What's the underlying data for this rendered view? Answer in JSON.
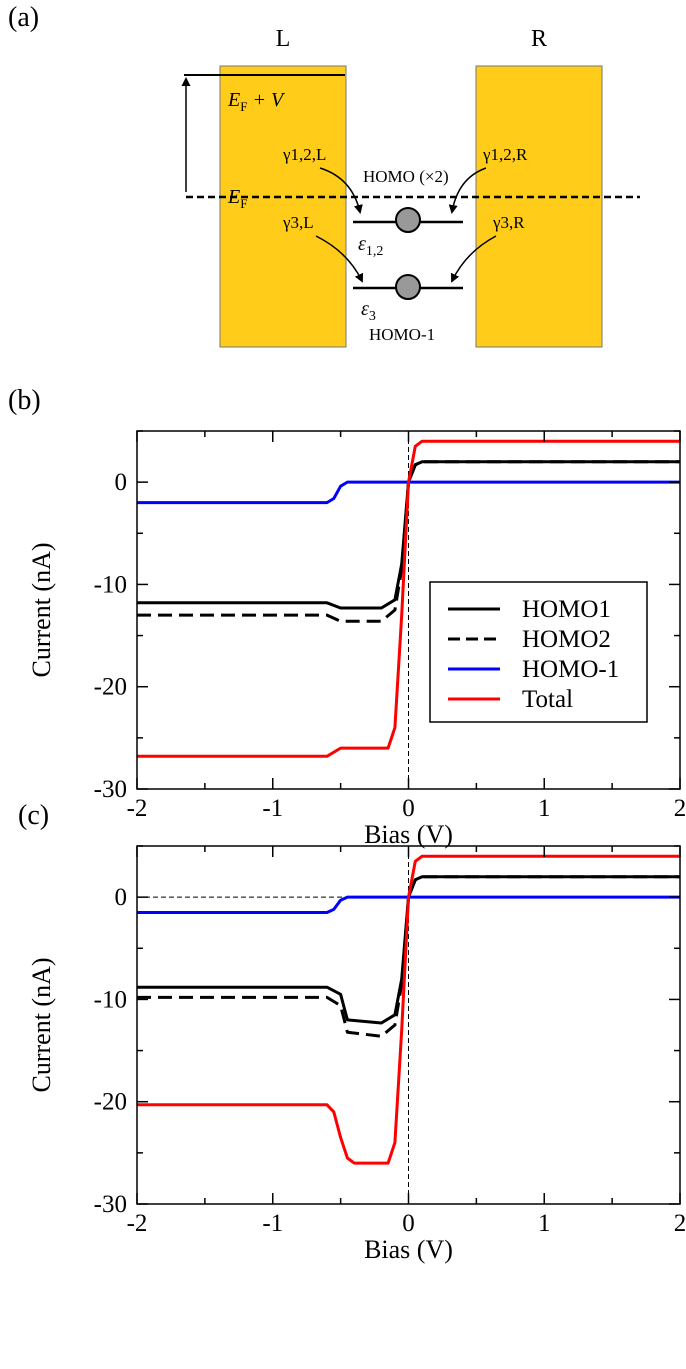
{
  "panel_labels": [
    "(a)",
    "(b)",
    "(c)"
  ],
  "diagram": {
    "left_label": "L",
    "right_label": "R",
    "ef_v": "E",
    "ef_v_sub": "F",
    "ef_v_suffix": " + V",
    "ef": "E",
    "ef_sub": "F",
    "g12L": "γ1,2,L",
    "g12R": "γ1,2,R",
    "g3L": "γ3,L",
    "g3R": "γ3,R",
    "homo": "HOMO (×2)",
    "eps12": "ε",
    "eps12_sub": "1,2",
    "eps3": "ε",
    "eps3_sub": "3",
    "homo_minus1": "HOMO-1",
    "colors": {
      "electrode": "#FFCC1A",
      "level_dot": "#999999"
    }
  },
  "chart_data": [
    {
      "type": "line",
      "xlabel": "Bias (V)",
      "ylabel": "Current (nA)",
      "xlim": [
        -2,
        2
      ],
      "ylim": [
        -30,
        5
      ],
      "xticks": [
        "-2",
        "-1",
        "0",
        "1",
        "2"
      ],
      "yticks": [
        "0",
        "-10",
        "-20",
        "-30"
      ],
      "legend": {
        "position": "right-center",
        "entries": [
          "HOMO1",
          "HOMO2",
          "HOMO-1",
          "Total"
        ]
      },
      "series": [
        {
          "name": "HOMO1",
          "color": "#000000",
          "dash": "solid",
          "x": [
            -2,
            -0.6,
            -0.5,
            -0.2,
            -0.1,
            -0.05,
            0,
            0.05,
            0.1,
            2
          ],
          "y": [
            -11.8,
            -11.8,
            -12.3,
            -12.3,
            -11.5,
            -8,
            0,
            1.7,
            2,
            2
          ]
        },
        {
          "name": "HOMO2",
          "color": "#000000",
          "dash": "dashed",
          "x": [
            -2,
            -0.6,
            -0.5,
            -0.2,
            -0.1,
            -0.05,
            0,
            0.05,
            0.1,
            2
          ],
          "y": [
            -13,
            -13,
            -13.6,
            -13.6,
            -12.5,
            -8.5,
            0,
            1.7,
            2,
            2
          ]
        },
        {
          "name": "HOMO-1",
          "color": "#0000FF",
          "dash": "solid",
          "x": [
            -2,
            -0.6,
            -0.55,
            -0.5,
            -0.45,
            2
          ],
          "y": [
            -2,
            -2,
            -1.6,
            -0.4,
            0,
            0
          ]
        },
        {
          "name": "Total",
          "color": "#FF0000",
          "dash": "solid",
          "x": [
            -2,
            -0.6,
            -0.5,
            -0.15,
            -0.1,
            -0.05,
            0,
            0.05,
            0.1,
            2
          ],
          "y": [
            -26.8,
            -26.8,
            -26,
            -26,
            -24,
            -13,
            0,
            3.5,
            4,
            4
          ]
        }
      ]
    },
    {
      "type": "line",
      "xlabel": "Bias (V)",
      "ylabel": "Current (nA)",
      "xlim": [
        -2,
        2
      ],
      "ylim": [
        -30,
        5
      ],
      "xticks": [
        "-2",
        "-1",
        "0",
        "1",
        "2"
      ],
      "yticks": [
        "0",
        "-10",
        "-20",
        "-30"
      ],
      "series": [
        {
          "name": "HOMO1",
          "color": "#000000",
          "dash": "solid",
          "x": [
            -2,
            -0.6,
            -0.5,
            -0.45,
            -0.2,
            -0.1,
            -0.05,
            0,
            0.05,
            0.1,
            2
          ],
          "y": [
            -8.8,
            -8.8,
            -9.5,
            -12,
            -12.3,
            -11.5,
            -8,
            0,
            1.7,
            2,
            2
          ]
        },
        {
          "name": "HOMO2",
          "color": "#000000",
          "dash": "dashed",
          "x": [
            -2,
            -0.6,
            -0.5,
            -0.45,
            -0.2,
            -0.1,
            -0.05,
            0,
            0.05,
            0.1,
            2
          ],
          "y": [
            -9.8,
            -9.8,
            -10.6,
            -13.2,
            -13.6,
            -12.5,
            -8.5,
            0,
            1.7,
            2,
            2
          ]
        },
        {
          "name": "HOMO-1",
          "color": "#0000FF",
          "dash": "solid",
          "x": [
            -2,
            -0.6,
            -0.55,
            -0.5,
            -0.45,
            2
          ],
          "y": [
            -1.5,
            -1.5,
            -1.2,
            -0.3,
            0,
            0
          ]
        },
        {
          "name": "Total",
          "color": "#FF0000",
          "dash": "solid",
          "x": [
            -2,
            -0.6,
            -0.55,
            -0.5,
            -0.45,
            -0.4,
            -0.15,
            -0.1,
            -0.05,
            0,
            0.05,
            0.1,
            2
          ],
          "y": [
            -20.3,
            -20.3,
            -21,
            -23.5,
            -25.5,
            -26,
            -26,
            -24,
            -13,
            0,
            3.5,
            4,
            4
          ]
        }
      ]
    }
  ]
}
